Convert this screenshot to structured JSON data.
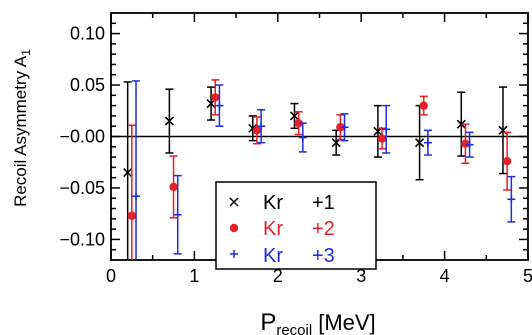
{
  "chart_data": {
    "type": "scatter",
    "xlabel": {
      "main": "P",
      "sub": "recoil",
      "unit": "[MeV]"
    },
    "ylabel": {
      "main": "Recoil Asymmetry A",
      "sub": "1"
    },
    "xlim": [
      0,
      5
    ],
    "ylim": [
      -0.12,
      0.12
    ],
    "xticks": [
      0,
      1,
      2,
      3,
      4,
      5
    ],
    "xtick_labels": [
      "0",
      "1",
      "2",
      "3",
      "4",
      "5"
    ],
    "yticks": [
      -0.1,
      -0.05,
      0.0,
      0.05,
      0.1
    ],
    "ytick_labels": [
      "−0.10",
      "−0.05",
      "−0.00",
      "0.05",
      "0.10"
    ],
    "zero_line": true,
    "legend_position": "bottom-center",
    "series": [
      {
        "name_parts": [
          "Kr",
          "+1"
        ],
        "marker": "x",
        "color": "#000000",
        "x": [
          0.2,
          0.7,
          1.2,
          1.7,
          2.2,
          2.7,
          3.2,
          3.7,
          4.2,
          4.7
        ],
        "y": [
          -0.035,
          0.015,
          0.032,
          0.008,
          0.02,
          -0.006,
          0.005,
          -0.006,
          0.012,
          0.006
        ],
        "err": [
          0.088,
          0.031,
          0.016,
          0.012,
          0.012,
          0.012,
          0.025,
          0.036,
          0.031,
          0.042
        ]
      },
      {
        "name_parts": [
          "Kr",
          "+2"
        ],
        "marker": "dot",
        "color": "#e8202a",
        "x": [
          0.25,
          0.75,
          1.25,
          1.75,
          2.25,
          2.75,
          3.25,
          3.75,
          4.25,
          4.75
        ],
        "y": [
          -0.077,
          -0.049,
          0.038,
          0.006,
          0.013,
          0.009,
          -0.002,
          0.03,
          -0.007,
          -0.024
        ],
        "err": [
          0.088,
          0.03,
          0.017,
          0.013,
          0.011,
          0.012,
          0.01,
          0.009,
          0.019,
          0.028
        ]
      },
      {
        "name_parts": [
          "Kr",
          "+3"
        ],
        "marker": "plus",
        "color": "#1c2ee0",
        "x": [
          0.3,
          0.8,
          1.3,
          1.8,
          2.3,
          2.8,
          3.3,
          3.8,
          4.3,
          4.8
        ],
        "y": [
          -0.058,
          -0.076,
          0.03,
          0.01,
          -0.001,
          0.009,
          0.007,
          -0.006,
          -0.008,
          -0.061
        ],
        "err": [
          0.112,
          0.038,
          0.02,
          0.016,
          0.014,
          0.013,
          0.023,
          0.012,
          0.012,
          0.022
        ]
      }
    ]
  }
}
